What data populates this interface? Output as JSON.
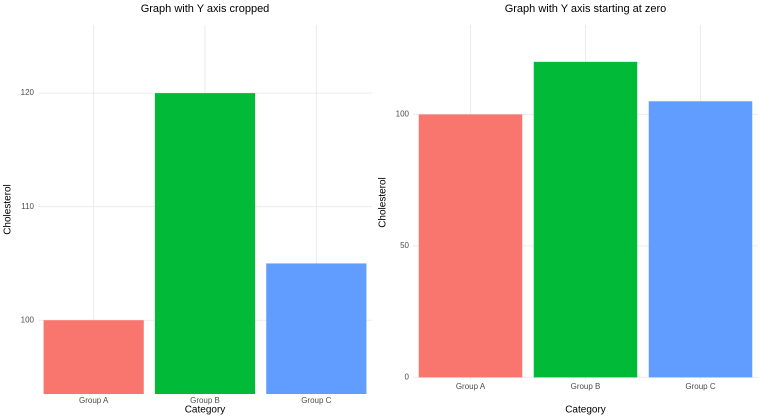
{
  "chart_data": [
    {
      "type": "bar",
      "title": "Graph with Y axis cropped",
      "x_label": "Category",
      "y_label": "Cholesterol",
      "categories": [
        "Group A",
        "Group B",
        "Group C"
      ],
      "values": [
        100,
        120,
        105
      ],
      "colors": [
        "#F8766D",
        "#00BA38",
        "#619CFF"
      ],
      "ylim": [
        93.5,
        126
      ],
      "yticks": [
        100,
        110,
        120
      ],
      "grid": true
    },
    {
      "type": "bar",
      "title": "Graph with Y axis starting at zero",
      "x_label": "Category",
      "y_label": "Cholesterol",
      "categories": [
        "Group A",
        "Group B",
        "Group C"
      ],
      "values": [
        100,
        120,
        105
      ],
      "colors": [
        "#F8766D",
        "#00BA38",
        "#619CFF"
      ],
      "ylim": [
        -1,
        134
      ],
      "yticks": [
        0,
        50,
        100
      ],
      "grid": true
    }
  ]
}
